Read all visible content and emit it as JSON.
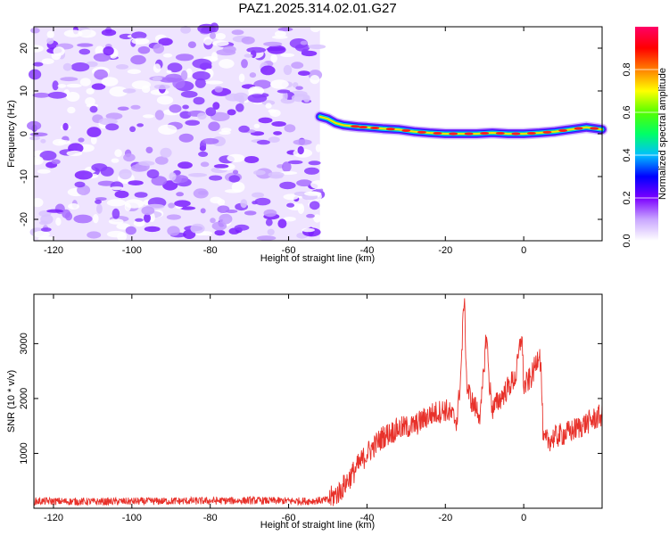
{
  "title": "PAZ1.2025.314.02.01.G27",
  "chart_data": [
    {
      "type": "heatmap",
      "xlabel": "Height of straight line (km)",
      "ylabel": "Frequency (Hz)",
      "xlim": [
        -125,
        20
      ],
      "ylim": [
        -25,
        25
      ],
      "xticks": [
        -120,
        -100,
        -80,
        -60,
        -40,
        -20,
        0
      ],
      "yticks": [
        -20,
        -10,
        0,
        10,
        20
      ],
      "grid": false,
      "noise_region_x": [
        -125,
        -52
      ],
      "signal_trace": {
        "name": "",
        "x": [
          -52,
          -50,
          -48,
          -46,
          -44,
          -42,
          -40,
          -36,
          -32,
          -28,
          -24,
          -20,
          -16,
          -12,
          -8,
          -4,
          0,
          4,
          8,
          12,
          16,
          20
        ],
        "y": [
          4,
          3.5,
          2.5,
          2,
          1.8,
          1.6,
          1.5,
          1.2,
          1.0,
          0.5,
          0.2,
          0,
          0,
          0,
          0.2,
          0,
          0,
          0.2,
          0.5,
          1,
          1.5,
          1
        ]
      },
      "colorbar": {
        "label": "Normalized spectral amplitude",
        "range": [
          0,
          1
        ],
        "ticks": [
          "0.0",
          "0.2",
          "0.4",
          "0.6",
          "0.8"
        ],
        "colors": [
          "#ffffff",
          "#c9a6ff",
          "#7b00ff",
          "#0000ff",
          "#00bfff",
          "#00ff66",
          "#55ff00",
          "#ffff00",
          "#ff8000",
          "#ff0000",
          "#ff0066"
        ]
      }
    },
    {
      "type": "line",
      "xlabel": "Height of straight line (km)",
      "ylabel": "SNR (10 * v/v)",
      "xlim": [
        -125,
        20
      ],
      "ylim": [
        0,
        3900
      ],
      "xticks": [
        -120,
        -100,
        -80,
        -60,
        -40,
        -20,
        0
      ],
      "yticks": [
        1000,
        2000,
        3000
      ],
      "grid": false,
      "color": "#e8312a",
      "series": [
        {
          "name": "",
          "x": [
            -125,
            -110,
            -90,
            -70,
            -55,
            -50,
            -47,
            -45,
            -43,
            -40,
            -36,
            -32,
            -28,
            -24,
            -20,
            -17,
            -16,
            -15.2,
            -14.5,
            -13,
            -11,
            -9.5,
            -8.8,
            -8,
            -6,
            -4,
            -2,
            -0.5,
            0,
            1,
            2,
            3,
            4,
            4.5,
            5,
            8,
            12,
            16,
            20
          ],
          "y": [
            130,
            120,
            130,
            140,
            130,
            150,
            300,
            500,
            700,
            1000,
            1300,
            1450,
            1500,
            1700,
            1800,
            1600,
            2500,
            3900,
            2200,
            1900,
            1700,
            3200,
            2300,
            1800,
            2000,
            2200,
            2400,
            3200,
            2200,
            2300,
            2400,
            2600,
            2900,
            2400,
            1200,
            1300,
            1400,
            1550,
            1700
          ]
        }
      ]
    }
  ]
}
